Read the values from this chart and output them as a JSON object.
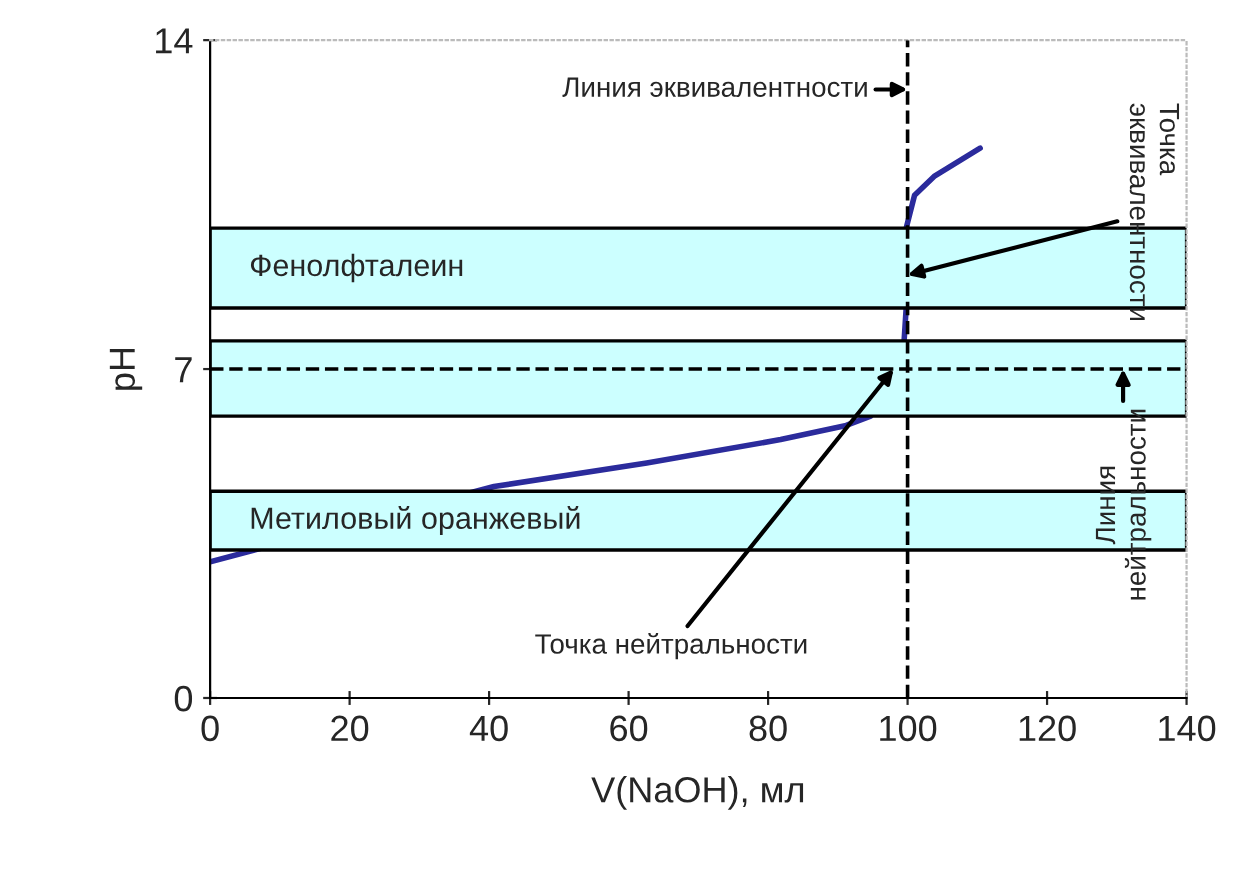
{
  "chart_data": {
    "type": "line",
    "xlabel": "V(NaOH), мл",
    "ylabel": "pH",
    "xlim": [
      0,
      140
    ],
    "xticks": [
      0,
      20,
      40,
      60,
      80,
      100,
      120,
      140
    ],
    "ylim": [
      0,
      14
    ],
    "yticks": [
      0,
      7,
      14
    ],
    "grid": false,
    "legend": false,
    "marker": "none",
    "line_style": "solid",
    "x": [
      0,
      40.7,
      62.6,
      81.8,
      91.2,
      94.7,
      99.5,
      99.8,
      99.8,
      101,
      103.8,
      110.4
    ],
    "series": [
      {
        "color": "#2b2b9c",
        "values": [
          2.9,
          4.5,
          5.0,
          5.5,
          5.8,
          6.0,
          7.6,
          8.3,
          10.0,
          10.7,
          11.1,
          11.7
        ]
      }
    ],
    "bands": [
      {
        "axis": "y",
        "from": 8.3,
        "to": 10.0,
        "label": "Фенолфталеин",
        "color": "#ccffff"
      },
      {
        "axis": "y",
        "from": 6.0,
        "to": 7.6,
        "label": null,
        "color": "#ccffff"
      },
      {
        "axis": "y",
        "from": 3.15,
        "to": 4.4,
        "label": "Метиловый оранжевый",
        "color": "#ccffff"
      }
    ],
    "ref_lines": [
      {
        "axis": "x",
        "value": 100,
        "label": "Линия эквивалентности",
        "line_style": "dashed",
        "color": "#000000"
      },
      {
        "axis": "y",
        "value": 7,
        "label": "Линия\nнейтральности",
        "line_style": "dashed",
        "color": "#000000"
      }
    ],
    "annotations": [
      {
        "text": "Точка\nэквивалентности",
        "x": 100,
        "y": 9.0
      },
      {
        "text": "Точка нейтральности",
        "x": 98,
        "y": 7.0
      }
    ]
  }
}
